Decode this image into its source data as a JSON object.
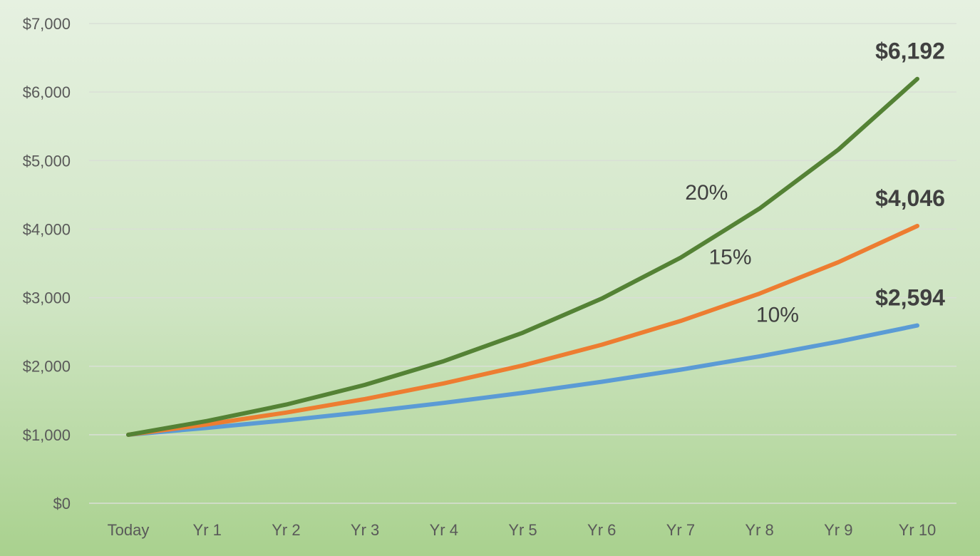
{
  "chart_data": {
    "type": "line",
    "categories": [
      "Today",
      "Yr 1",
      "Yr 2",
      "Yr 3",
      "Yr 4",
      "Yr 5",
      "Yr 6",
      "Yr 7",
      "Yr 8",
      "Yr 9",
      "Yr 10"
    ],
    "ylim": [
      0,
      7000
    ],
    "y_ticks": [
      0,
      1000,
      2000,
      3000,
      4000,
      5000,
      6000,
      7000
    ],
    "y_tick_labels": [
      "$0",
      "$1,000",
      "$2,000",
      "$3,000",
      "$4,000",
      "$5,000",
      "$6,000",
      "$7,000"
    ],
    "grid": true,
    "legend": "none",
    "series": [
      {
        "label": "10%",
        "color": "#5b9bd5",
        "end_label": "$2,594",
        "values": [
          1000,
          1100,
          1210,
          1331,
          1464,
          1611,
          1772,
          1949,
          2144,
          2358,
          2594
        ]
      },
      {
        "label": "15%",
        "color": "#ed7d31",
        "end_label": "$4,046",
        "values": [
          1000,
          1150,
          1323,
          1521,
          1749,
          2011,
          2313,
          2660,
          3059,
          3518,
          4046
        ]
      },
      {
        "label": "20%",
        "color": "#548235",
        "end_label": "$6,192",
        "values": [
          1000,
          1200,
          1440,
          1728,
          2074,
          2488,
          2986,
          3583,
          4300,
          5160,
          6192
        ]
      }
    ]
  }
}
